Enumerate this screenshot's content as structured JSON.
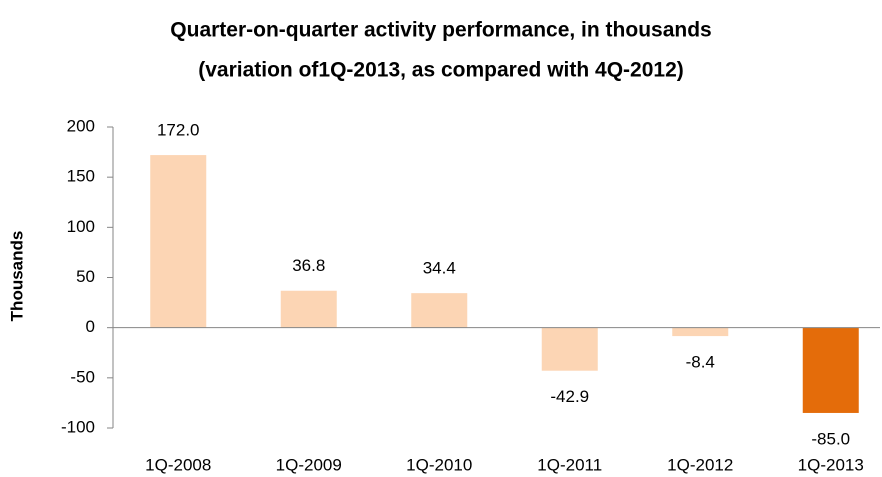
{
  "chart_data": {
    "type": "bar",
    "title": "Quarter-on-quarter activity performance, in thousands",
    "subtitle": "(variation of1Q-2013, as compared with 4Q-2012)",
    "y_label": "Thousands",
    "categories": [
      "1Q-2008",
      "1Q-2009",
      "1Q-2010",
      "1Q-2011",
      "1Q-2012",
      "1Q-2013"
    ],
    "values": [
      172,
      36.8,
      34.4,
      -42.9,
      -8.4,
      -85
    ],
    "value_labels": [
      "172.0",
      "36.8",
      "34.4",
      "-42.9",
      "-8.4",
      "-85.0"
    ],
    "colors": [
      "#fcd5b4",
      "#fcd5b4",
      "#fcd5b4",
      "#fcd5b4",
      "#fcd5b4",
      "#e46c0a"
    ],
    "ylim": [
      -100,
      200
    ],
    "yticks": [
      -100,
      -50,
      0,
      50,
      100,
      150,
      200
    ],
    "grid": false
  }
}
